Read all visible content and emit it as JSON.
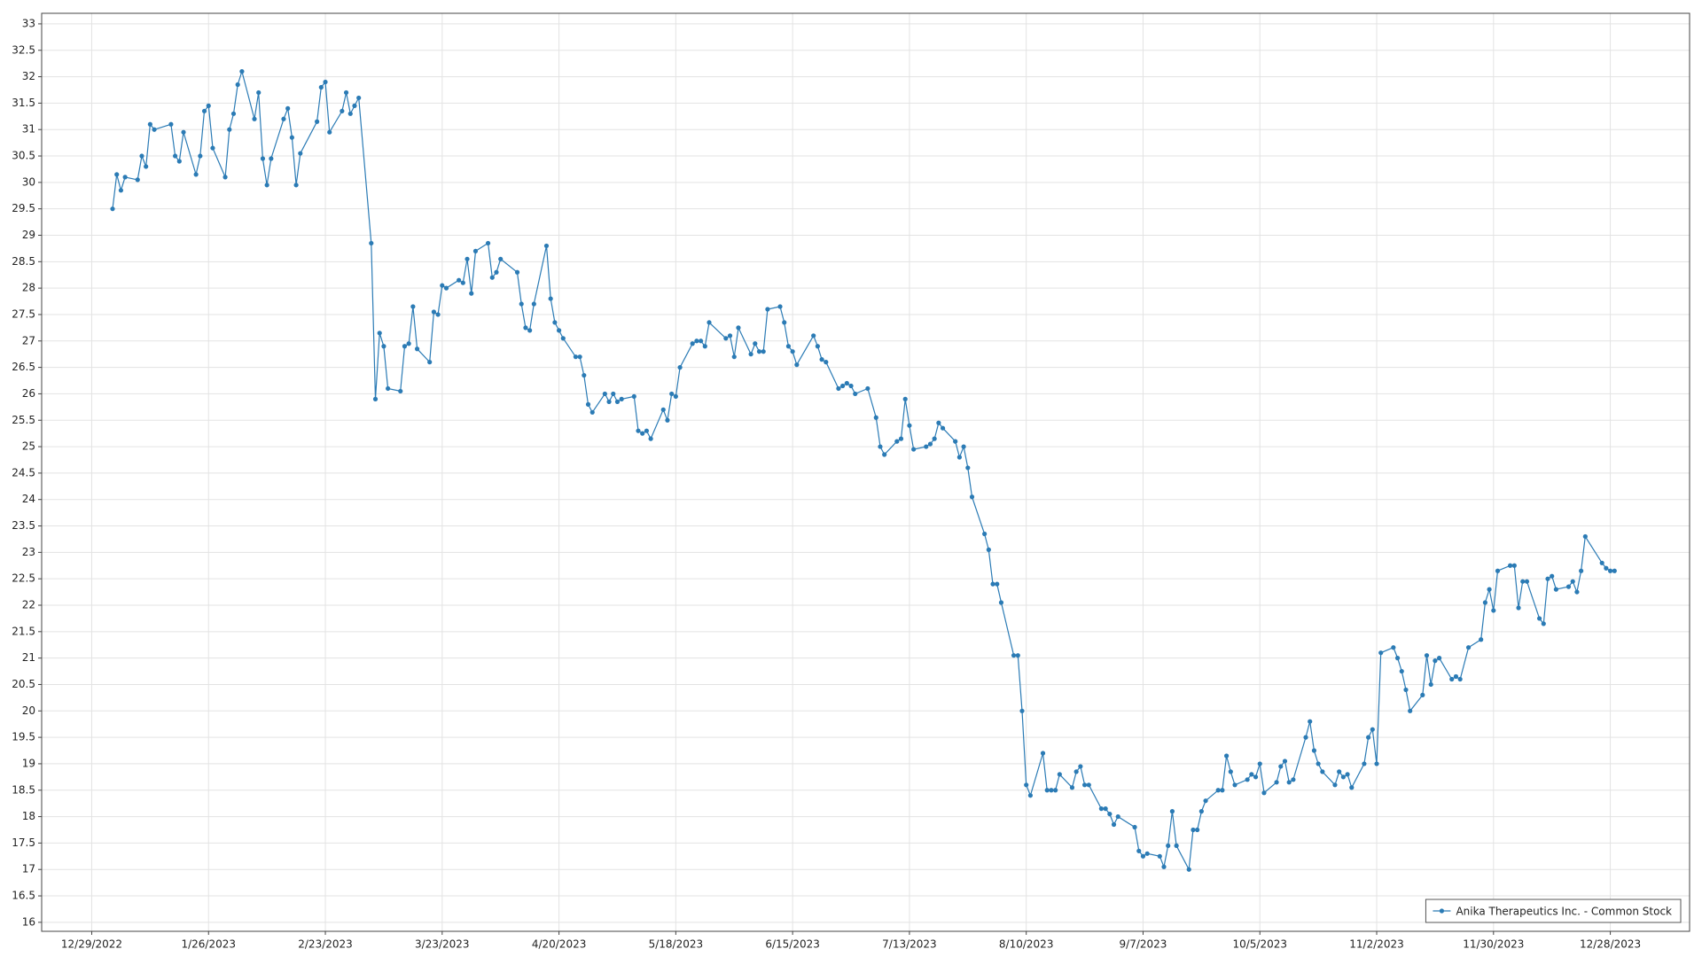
{
  "chart_data": {
    "type": "line",
    "x": [
      "1/3/2023",
      "1/4/2023",
      "1/5/2023",
      "1/6/2023",
      "1/9/2023",
      "1/10/2023",
      "1/11/2023",
      "1/12/2023",
      "1/13/2023",
      "1/17/2023",
      "1/18/2023",
      "1/19/2023",
      "1/20/2023",
      "1/23/2023",
      "1/24/2023",
      "1/25/2023",
      "1/26/2023",
      "1/27/2023",
      "1/30/2023",
      "1/31/2023",
      "2/1/2023",
      "2/2/2023",
      "2/3/2023",
      "2/6/2023",
      "2/7/2023",
      "2/8/2023",
      "2/9/2023",
      "2/10/2023",
      "2/13/2023",
      "2/14/2023",
      "2/15/2023",
      "2/16/2023",
      "2/17/2023",
      "2/21/2023",
      "2/22/2023",
      "2/23/2023",
      "2/24/2023",
      "2/27/2023",
      "2/28/2023",
      "3/1/2023",
      "3/2/2023",
      "3/3/2023",
      "3/6/2023",
      "3/7/2023",
      "3/8/2023",
      "3/9/2023",
      "3/10/2023",
      "3/13/2023",
      "3/14/2023",
      "3/15/2023",
      "3/16/2023",
      "3/17/2023",
      "3/20/2023",
      "3/21/2023",
      "3/22/2023",
      "3/23/2023",
      "3/24/2023",
      "3/27/2023",
      "3/28/2023",
      "3/29/2023",
      "3/30/2023",
      "3/31/2023",
      "4/3/2023",
      "4/4/2023",
      "4/5/2023",
      "4/6/2023",
      "4/10/2023",
      "4/11/2023",
      "4/12/2023",
      "4/13/2023",
      "4/14/2023",
      "4/17/2023",
      "4/18/2023",
      "4/19/2023",
      "4/20/2023",
      "4/21/2023",
      "4/24/2023",
      "4/25/2023",
      "4/26/2023",
      "4/27/2023",
      "4/28/2023",
      "5/1/2023",
      "5/2/2023",
      "5/3/2023",
      "5/4/2023",
      "5/5/2023",
      "5/8/2023",
      "5/9/2023",
      "5/10/2023",
      "5/11/2023",
      "5/12/2023",
      "5/15/2023",
      "5/16/2023",
      "5/17/2023",
      "5/18/2023",
      "5/19/2023",
      "5/22/2023",
      "5/23/2023",
      "5/24/2023",
      "5/25/2023",
      "5/26/2023",
      "5/30/2023",
      "5/31/2023",
      "6/1/2023",
      "6/2/2023",
      "6/5/2023",
      "6/6/2023",
      "6/7/2023",
      "6/8/2023",
      "6/9/2023",
      "6/12/2023",
      "6/13/2023",
      "6/14/2023",
      "6/15/2023",
      "6/16/2023",
      "6/20/2023",
      "6/21/2023",
      "6/22/2023",
      "6/23/2023",
      "6/26/2023",
      "6/27/2023",
      "6/28/2023",
      "6/29/2023",
      "6/30/2023",
      "7/3/2023",
      "7/5/2023",
      "7/6/2023",
      "7/7/2023",
      "7/10/2023",
      "7/11/2023",
      "7/12/2023",
      "7/13/2023",
      "7/14/2023",
      "7/17/2023",
      "7/18/2023",
      "7/19/2023",
      "7/20/2023",
      "7/21/2023",
      "7/24/2023",
      "7/25/2023",
      "7/26/2023",
      "7/27/2023",
      "7/28/2023",
      "7/31/2023",
      "8/1/2023",
      "8/2/2023",
      "8/3/2023",
      "8/4/2023",
      "8/7/2023",
      "8/8/2023",
      "8/9/2023",
      "8/10/2023",
      "8/11/2023",
      "8/14/2023",
      "8/15/2023",
      "8/16/2023",
      "8/17/2023",
      "8/18/2023",
      "8/21/2023",
      "8/22/2023",
      "8/23/2023",
      "8/24/2023",
      "8/25/2023",
      "8/28/2023",
      "8/29/2023",
      "8/30/2023",
      "8/31/2023",
      "9/1/2023",
      "9/5/2023",
      "9/6/2023",
      "9/7/2023",
      "9/8/2023",
      "9/11/2023",
      "9/12/2023",
      "9/13/2023",
      "9/14/2023",
      "9/15/2023",
      "9/18/2023",
      "9/19/2023",
      "9/20/2023",
      "9/21/2023",
      "9/22/2023",
      "9/25/2023",
      "9/26/2023",
      "9/27/2023",
      "9/28/2023",
      "9/29/2023",
      "10/2/2023",
      "10/3/2023",
      "10/4/2023",
      "10/5/2023",
      "10/6/2023",
      "10/9/2023",
      "10/10/2023",
      "10/11/2023",
      "10/12/2023",
      "10/13/2023",
      "10/16/2023",
      "10/17/2023",
      "10/18/2023",
      "10/19/2023",
      "10/20/2023",
      "10/23/2023",
      "10/24/2023",
      "10/25/2023",
      "10/26/2023",
      "10/27/2023",
      "10/30/2023",
      "10/31/2023",
      "11/1/2023",
      "11/2/2023",
      "11/3/2023",
      "11/6/2023",
      "11/7/2023",
      "11/8/2023",
      "11/9/2023",
      "11/10/2023",
      "11/13/2023",
      "11/14/2023",
      "11/15/2023",
      "11/16/2023",
      "11/17/2023",
      "11/20/2023",
      "11/21/2023",
      "11/22/2023",
      "11/24/2023",
      "11/27/2023",
      "11/28/2023",
      "11/29/2023",
      "11/30/2023",
      "12/1/2023",
      "12/4/2023",
      "12/5/2023",
      "12/6/2023",
      "12/7/2023",
      "12/8/2023",
      "12/11/2023",
      "12/12/2023",
      "12/13/2023",
      "12/14/2023",
      "12/15/2023",
      "12/18/2023",
      "12/19/2023",
      "12/20/2023",
      "12/21/2023",
      "12/22/2023",
      "12/26/2023",
      "12/27/2023",
      "12/28/2023",
      "12/29/2023"
    ],
    "series": [
      {
        "name": "Anika Therapeutics Inc. - Common Stock",
        "color": "#2b7bb5",
        "values": [
          29.5,
          30.15,
          29.85,
          30.1,
          30.05,
          30.5,
          30.3,
          31.1,
          31.0,
          31.1,
          30.5,
          30.4,
          30.95,
          30.15,
          30.5,
          31.35,
          31.45,
          30.65,
          30.1,
          31.0,
          31.3,
          31.85,
          32.1,
          31.2,
          31.7,
          30.45,
          29.95,
          30.45,
          31.2,
          31.4,
          30.85,
          29.95,
          30.55,
          31.15,
          31.8,
          31.9,
          30.95,
          31.35,
          31.7,
          31.3,
          31.45,
          31.6,
          28.85,
          25.9,
          27.15,
          26.9,
          26.1,
          26.05,
          26.9,
          26.95,
          27.65,
          26.85,
          26.6,
          27.55,
          27.5,
          28.05,
          28.0,
          28.15,
          28.1,
          28.55,
          27.9,
          28.7,
          28.85,
          28.2,
          28.3,
          28.55,
          28.3,
          27.7,
          27.25,
          27.2,
          27.7,
          28.8,
          27.8,
          27.35,
          27.2,
          27.05,
          26.7,
          26.7,
          26.35,
          25.8,
          25.65,
          26.0,
          25.85,
          26.0,
          25.85,
          25.9,
          25.95,
          25.3,
          25.25,
          25.3,
          25.15,
          25.7,
          25.5,
          26.0,
          25.95,
          26.5,
          26.95,
          27.0,
          27.0,
          26.9,
          27.35,
          27.05,
          27.1,
          26.7,
          27.25,
          26.75,
          26.95,
          26.8,
          26.8,
          27.6,
          27.65,
          27.35,
          26.9,
          26.8,
          26.55,
          27.1,
          26.9,
          26.65,
          26.6,
          26.1,
          26.15,
          26.2,
          26.15,
          26.0,
          26.1,
          25.55,
          25.0,
          24.85,
          25.1,
          25.15,
          25.9,
          25.4,
          24.95,
          25.0,
          25.05,
          25.15,
          25.45,
          25.35,
          25.1,
          24.8,
          25.0,
          24.6,
          24.05,
          23.35,
          23.05,
          22.4,
          22.4,
          22.05,
          21.05,
          21.05,
          20.0,
          18.6,
          18.4,
          19.2,
          18.5,
          18.5,
          18.5,
          18.8,
          18.55,
          18.85,
          18.95,
          18.6,
          18.6,
          18.15,
          18.15,
          18.05,
          17.85,
          18.0,
          17.8,
          17.35,
          17.25,
          17.3,
          17.25,
          17.05,
          17.45,
          18.1,
          17.45,
          17.0,
          17.75,
          17.75,
          18.1,
          18.3,
          18.5,
          18.5,
          19.15,
          18.85,
          18.6,
          18.7,
          18.8,
          18.75,
          19.0,
          18.45,
          18.65,
          18.95,
          19.05,
          18.65,
          18.7,
          19.5,
          19.8,
          19.25,
          19.0,
          18.85,
          18.6,
          18.85,
          18.75,
          18.8,
          18.55,
          19.0,
          19.5,
          19.65,
          19.0,
          21.1,
          21.2,
          21.0,
          20.75,
          20.4,
          20.0,
          20.3,
          21.05,
          20.5,
          20.95,
          21.0,
          20.6,
          20.65,
          20.6,
          21.2,
          21.35,
          22.05,
          22.3,
          21.9,
          22.65,
          22.75,
          22.75,
          21.95,
          22.45,
          22.45,
          21.75,
          21.65,
          22.5,
          22.55,
          22.3,
          22.35,
          22.45,
          22.25,
          22.65,
          23.3,
          22.8,
          22.7,
          22.65,
          22.65
        ]
      }
    ],
    "xlim": [
      "12/17/2022",
      "1/16/2024"
    ],
    "xticks": [
      "12/29/2022",
      "1/26/2023",
      "2/23/2023",
      "3/23/2023",
      "4/20/2023",
      "5/18/2023",
      "6/15/2023",
      "7/13/2023",
      "8/10/2023",
      "9/7/2023",
      "10/5/2023",
      "11/2/2023",
      "11/30/2023",
      "12/28/2023"
    ],
    "ylim": [
      15.83,
      33.2
    ],
    "yticks": [
      16,
      16.5,
      17,
      17.5,
      18,
      18.5,
      19,
      19.5,
      20,
      20.5,
      21,
      21.5,
      22,
      22.5,
      23,
      23.5,
      24,
      24.5,
      25,
      25.5,
      26,
      26.5,
      27,
      27.5,
      28,
      28.5,
      29,
      29.5,
      30,
      30.5,
      31,
      31.5,
      32,
      32.5,
      33
    ],
    "grid": true,
    "legend": "lower right"
  }
}
